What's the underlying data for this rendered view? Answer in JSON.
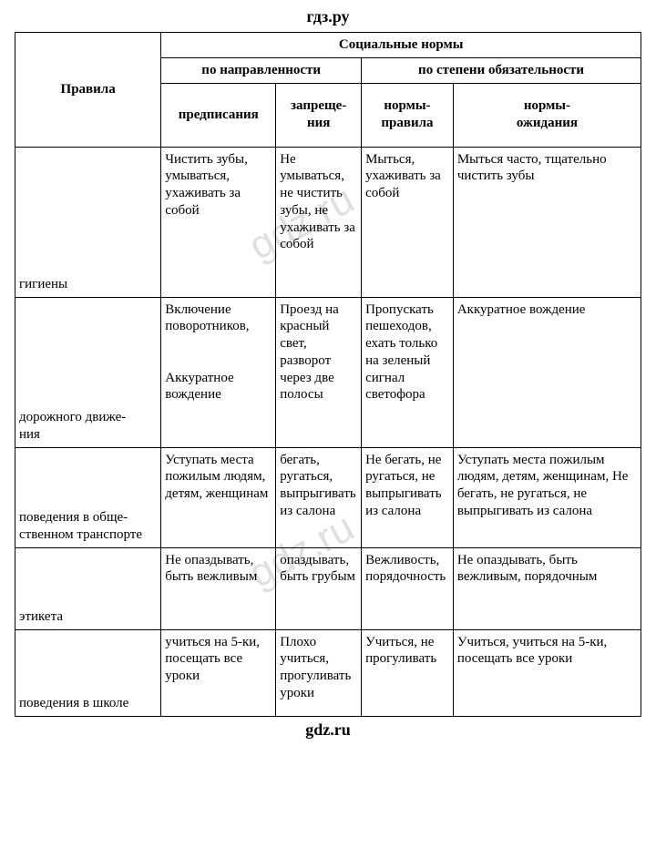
{
  "site": {
    "header": "гдз.ру",
    "footer": "gdz.ru",
    "watermark": "gdz.ru"
  },
  "table": {
    "header": {
      "rules": "Правила",
      "social_norms": "Социальные нормы",
      "by_direction": "по направленности",
      "by_obligation": "по степени обязательности",
      "prescriptions": "предписания",
      "prohibitions": "запреще-\nния",
      "norms_rules": "нормы-\nправила",
      "norms_expect": "нормы-\nожидания"
    },
    "rows": [
      {
        "label": "гигиены",
        "prescriptions": "Чистить зубы, умываться, ухаживать за собой",
        "prohibitions": "Не умываться, не чистить зубы, не ухаживать за собой",
        "norms_rules": "Мыться, ухаживать за собой",
        "norms_expect": " Мыться часто, тщательно чистить зубы"
      },
      {
        "label": "дорожного движе-\nния",
        "prescriptions": "Включение поворотников,\n\nАккуратное вождение",
        "prohibitions": "Проезд на красный свет, разворот через две полосы",
        "norms_rules": "Пропускать пешеходов, ехать только на зеленый сигнал светофора",
        "norms_expect": "Аккуратное вождение"
      },
      {
        "label": "поведения в обще-\nственном транспорте",
        "prescriptions": "Уступать места пожилым людям, детям, женщинам",
        "prohibitions": "бегать, ругаться, выпрыгивать из салона",
        "norms_rules": "Не бегать, не ругаться, не выпрыгивать из салона",
        "norms_expect": "Уступать места пожилым людям, детям, женщинам, Не бегать, не ругаться, не выпрыгивать из салона"
      },
      {
        "label": "этикета",
        "prescriptions": "Не опаздывать, быть вежливым",
        "prohibitions": "опаздывать, быть грубым",
        "norms_rules": "Вежливость, порядочность",
        "norms_expect": "Не опаздывать, быть вежливым, порядочным"
      },
      {
        "label": "поведения в школе",
        "prescriptions": "учиться на 5-ки, посещать все уроки",
        "prohibitions": "Плохо учиться, прогуливать уроки",
        "norms_rules": "Учиться, не прогуливать",
        "norms_expect": "Учиться, учиться на 5-ки, посещать все уроки"
      }
    ]
  },
  "colors": {
    "text": "#000000",
    "background": "#ffffff",
    "border": "#000000"
  },
  "typography": {
    "body_family": "Times New Roman",
    "body_size_pt": 12,
    "header_size_pt": 14
  }
}
